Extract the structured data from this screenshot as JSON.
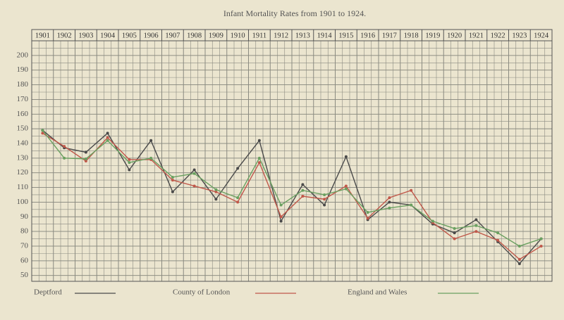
{
  "chart_data": {
    "type": "line",
    "title": "Infant Mortality Rates from 1901 to 1924.",
    "categories": [
      "1901",
      "1902",
      "1903",
      "1904",
      "1905",
      "1906",
      "1907",
      "1908",
      "1909",
      "1910",
      "1911",
      "1912",
      "1913",
      "1914",
      "1915",
      "1916",
      "1917",
      "1918",
      "1919",
      "1920",
      "1921",
      "1922",
      "1923",
      "1924"
    ],
    "series": [
      {
        "name": "Deptford",
        "color": "#4a4a4a",
        "values": [
          149,
          137,
          134,
          147,
          122,
          142,
          107,
          122,
          102,
          123,
          142,
          87,
          112,
          98,
          131,
          88,
          100,
          98,
          85,
          79,
          88,
          73,
          58,
          75
        ]
      },
      {
        "name": "County of London",
        "color": "#c0584a",
        "values": [
          147,
          138,
          128,
          144,
          129,
          129,
          115,
          111,
          107,
          100,
          127,
          90,
          104,
          102,
          111,
          89,
          103,
          108,
          86,
          75,
          80,
          74,
          61,
          70
        ]
      },
      {
        "name": "England and Wales",
        "color": "#6aa060",
        "values": [
          149,
          130,
          129.5,
          142,
          127,
          130,
          117,
          119.5,
          108.5,
          103,
          130,
          98,
          108,
          105,
          109,
          93,
          96,
          98,
          87,
          82,
          84,
          79,
          70,
          75
        ]
      }
    ],
    "ylim": [
      46,
      210
    ],
    "yticks": [
      50,
      60,
      70,
      80,
      90,
      100,
      110,
      120,
      130,
      140,
      150,
      160,
      170,
      180,
      190,
      200
    ],
    "grid": true,
    "legend": "bottom"
  }
}
